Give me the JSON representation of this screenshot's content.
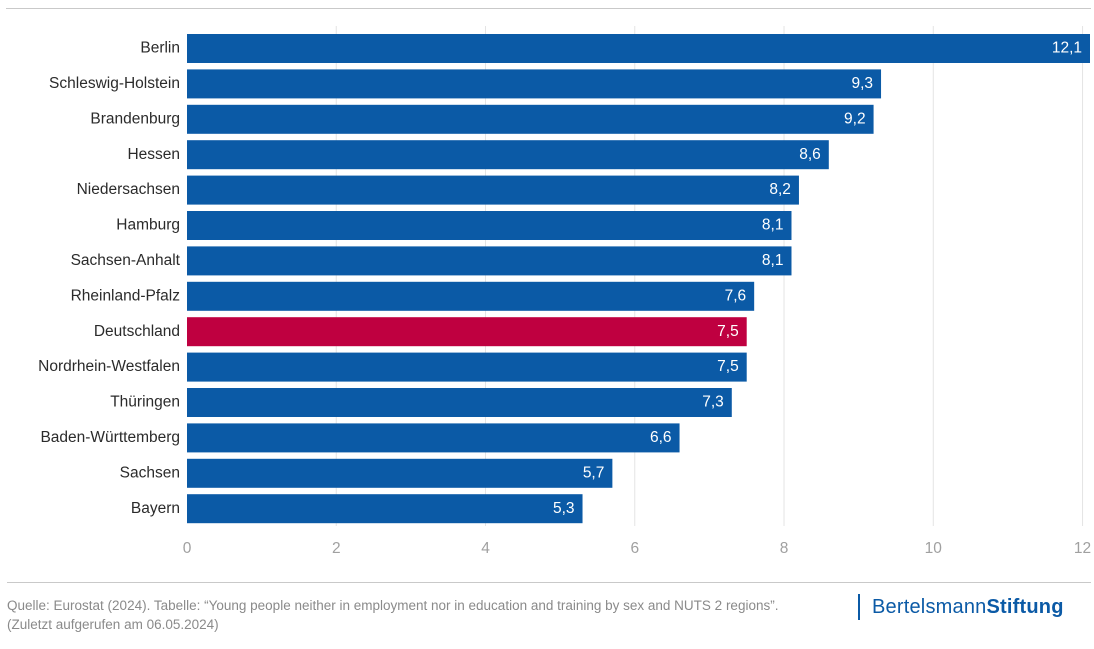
{
  "chart_data": {
    "type": "bar",
    "orientation": "horizontal",
    "categories": [
      "Berlin",
      "Schleswig-Holstein",
      "Brandenburg",
      "Hessen",
      "Niedersachsen",
      "Hamburg",
      "Sachsen-Anhalt",
      "Rheinland-Pfalz",
      "Deutschland",
      "Nordrhein-Westfalen",
      "Thüringen",
      "Baden-Württemberg",
      "Sachsen",
      "Bayern"
    ],
    "values": [
      12.1,
      9.3,
      9.2,
      8.6,
      8.2,
      8.1,
      8.1,
      7.6,
      7.5,
      7.5,
      7.3,
      6.6,
      5.7,
      5.3
    ],
    "value_labels": [
      "12,1",
      "9,3",
      "9,2",
      "8,6",
      "8,2",
      "8,1",
      "8,1",
      "7,6",
      "7,5",
      "7,5",
      "7,3",
      "6,6",
      "5,7",
      "5,3"
    ],
    "highlight_category": "Deutschland",
    "x_ticks": [
      0,
      2,
      4,
      6,
      8,
      10,
      12
    ],
    "x_tick_labels": [
      "0",
      "2",
      "4",
      "6",
      "8",
      "10",
      "12"
    ],
    "xlim": [
      0,
      12.1
    ],
    "grid": true,
    "title": "",
    "xlabel": "",
    "ylabel": ""
  },
  "colors": {
    "bar": "#0b5aa6",
    "highlight": "#bf0040",
    "grid": "#e4e4e4",
    "brand": "#0b5aa6"
  },
  "footer": {
    "source": "Quelle: Eurostat (2024). Tabelle: “Young people neither in employment nor in education and training by sex and NUTS 2 regions”. (Zuletzt aufgerufen am 06.05.2024)",
    "brand_regular": "Bertelsmann",
    "brand_bold": "Stiftung"
  }
}
